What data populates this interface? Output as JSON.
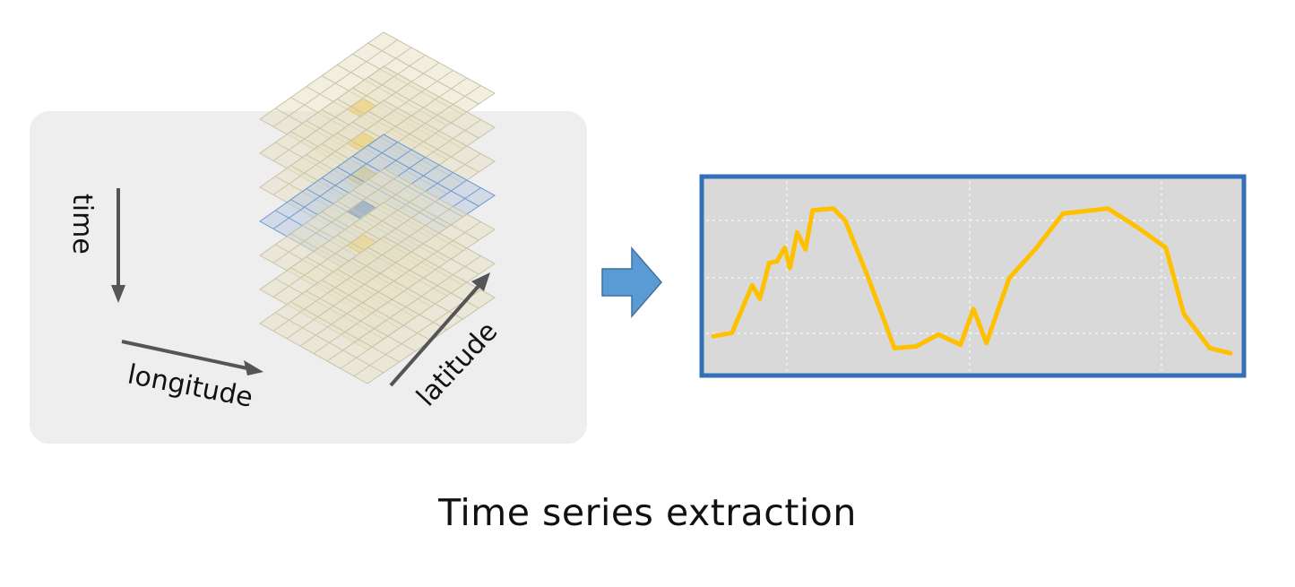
{
  "caption": "Time series extraction",
  "axes": {
    "time": "time",
    "longitude": "longitude",
    "latitude": "latitude"
  },
  "colors": {
    "panel": "#eeeeee",
    "layer_fill": "#e8e2c6",
    "layer_grid": "#c9c3a8",
    "highlight_layer_grid": "#6f9bd1",
    "highlight_cell": "#f2c94c",
    "highlight_cell_blue": "#3f78c2",
    "arrow": "#5b9bd5",
    "plot_border": "#3370b8",
    "plot_bg": "#d9d9d9",
    "plot_line": "#ffc000"
  },
  "series": {
    "y": [
      0.12,
      0.14,
      0.42,
      0.34,
      0.55,
      0.56,
      0.64,
      0.52,
      0.73,
      0.63,
      0.86,
      0.87,
      0.8,
      0.46,
      0.05,
      0.06,
      0.13,
      0.07,
      0.28,
      0.08,
      0.46,
      0.64,
      0.84,
      0.87,
      0.76,
      0.64,
      0.25,
      0.05,
      0.02
    ]
  }
}
